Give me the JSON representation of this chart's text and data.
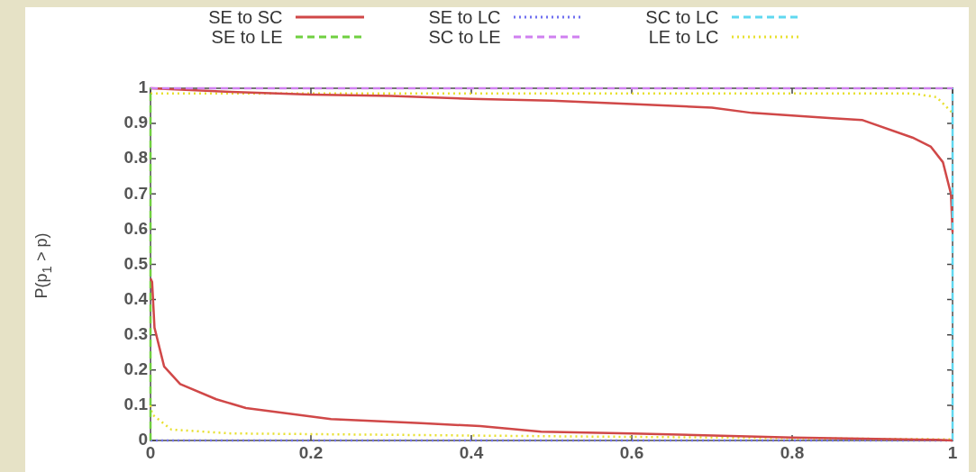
{
  "chart_data": {
    "type": "line",
    "ylabel": "P(p$_{1}$ > p)",
    "legend": "top",
    "grid": false,
    "marker": "none",
    "xlim": [
      0,
      1
    ],
    "xticks": [
      0,
      0.2,
      0.4,
      0.6,
      0.8,
      1
    ],
    "ylim": [
      0,
      1
    ],
    "yticks": [
      0,
      0.1,
      0.2,
      0.3,
      0.4,
      0.5,
      0.6,
      0.7,
      0.8,
      0.9,
      1
    ],
    "series": [
      {
        "name": "SE to SC",
        "color": "#d04848",
        "line_style": "solid",
        "x": [
          0,
          0.002,
          0.005,
          0.017,
          0.037,
          0.082,
          0.119,
          0.225,
          0.337,
          0.411,
          0.487,
          0.6,
          0.8,
          0.98,
          1
        ],
        "values": [
          0.46,
          0.45,
          0.32,
          0.21,
          0.16,
          0.117,
          0.092,
          0.061,
          0.049,
          0.041,
          0.025,
          0.02,
          0.008,
          0.002,
          0
        ]
      },
      {
        "name": "SE to LE",
        "color": "#70d040",
        "line_style": "dashed",
        "x": [
          0,
          0
        ],
        "values": [
          0,
          1
        ]
      },
      {
        "name": "SE to LC",
        "color": "#7070f0",
        "line_style": "dotted",
        "x": [
          0,
          1
        ],
        "values": [
          0,
          0
        ]
      },
      {
        "name": "SC to LE",
        "color": "#d080f0",
        "line_style": "dashed",
        "x": [
          0,
          1
        ],
        "values": [
          1,
          1
        ]
      },
      {
        "name": "SC to LC",
        "color": "#60d8f0",
        "line_style": "dashed",
        "x": [
          1,
          1
        ],
        "values": [
          0,
          1
        ]
      },
      {
        "name": "LE to LC",
        "color": "#e8e030",
        "line_style": "dotted",
        "x": [
          0,
          0.002,
          0.026,
          0.1,
          0.5,
          1
        ],
        "values": [
          0.1,
          0.074,
          0.031,
          0.02,
          0.012,
          0.003
        ]
      },
      {
        "color": "#d04848",
        "line_style": "solid",
        "x": [
          0,
          0.1,
          0.2,
          0.3,
          0.4,
          0.5,
          0.6,
          0.7,
          0.75,
          0.85,
          0.887,
          0.95,
          0.973,
          0.988,
          0.998,
          1
        ],
        "values": [
          1,
          0.99,
          0.982,
          0.978,
          0.97,
          0.965,
          0.955,
          0.945,
          0.93,
          0.915,
          0.91,
          0.86,
          0.834,
          0.79,
          0.7,
          0.59
        ]
      },
      {
        "color": "#e8e030",
        "line_style": "dotted",
        "x": [
          0,
          0.5,
          0.95,
          0.98,
          1
        ],
        "values": [
          0.985,
          0.985,
          0.985,
          0.975,
          0.93
        ]
      }
    ]
  }
}
